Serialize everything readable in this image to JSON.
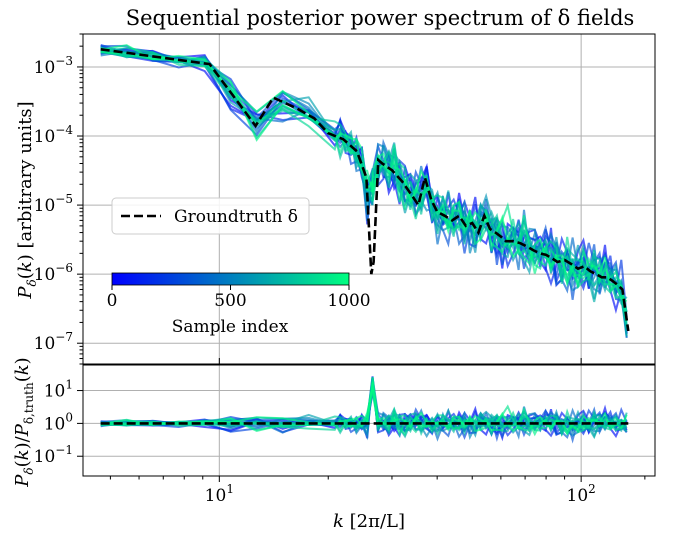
{
  "chart_data": [
    {
      "type": "line",
      "panel": "top",
      "title": "Sequential posterior power spectrum of δ fields",
      "xlabel": "",
      "ylabel": "P_δ(k) [arbitrary units]",
      "xscale": "log",
      "yscale": "log",
      "xlim": [
        4.2,
        160
      ],
      "ylim": [
        5e-08,
        0.003
      ],
      "grid": true,
      "yticks": [
        {
          "value": 0.001,
          "base": "10",
          "exp": "−3"
        },
        {
          "value": 0.0001,
          "base": "10",
          "exp": "−4"
        },
        {
          "value": 1e-05,
          "base": "10",
          "exp": "−5"
        },
        {
          "value": 1e-06,
          "base": "10",
          "exp": "−6"
        },
        {
          "value": 1e-07,
          "base": "10",
          "exp": "−7"
        }
      ],
      "legend": {
        "position": "middle-left",
        "label": "Groundtruth δ"
      },
      "colorbar": {
        "label": "Sample index",
        "min": 0,
        "max": 1000,
        "ticks": [
          "0",
          "500",
          "1000"
        ],
        "colors": [
          "#0000ff",
          "#00ff80"
        ],
        "colormap": "winter"
      },
      "groundtruth": {
        "name": "Groundtruth δ",
        "color": "#000000",
        "style": "dashed",
        "x": [
          4.7,
          9.4,
          12.6,
          14.1,
          16.4,
          18.3,
          20.0,
          22.0,
          24.0,
          25.5,
          26.3,
          26.7,
          27.5,
          28.2,
          30.0,
          32.0,
          34.0,
          35.5,
          37.0,
          38.5,
          40.0,
          42.0,
          44.0,
          46.0,
          48.0,
          50.0,
          52.0,
          54.0,
          56.0,
          58.0,
          60.0,
          62.0,
          65.0,
          68.0,
          71.0,
          74.0,
          77.0,
          80.0,
          83.0,
          86.0,
          90.0,
          94.0,
          98.0,
          102.0,
          106.0,
          110.0,
          114.0,
          118.0,
          122.0,
          126.0,
          130.0,
          135.0
        ],
        "y": [
          0.0018,
          0.0011,
          0.00014,
          0.00036,
          0.00025,
          0.00018,
          0.00011,
          9e-05,
          6e-05,
          2.5e-05,
          1e-06,
          1.5e-06,
          4.5e-05,
          4e-05,
          3.2e-05,
          2.2e-05,
          1.4e-05,
          1e-05,
          2.5e-05,
          1.2e-05,
          8e-06,
          7e-06,
          6e-06,
          7e-06,
          5e-06,
          5.5e-06,
          4e-06,
          7e-06,
          4.5e-06,
          4e-06,
          3.5e-06,
          3e-06,
          3e-06,
          2.8e-06,
          2.5e-06,
          2.2e-06,
          2e-06,
          1.9e-06,
          1.7e-06,
          1.5e-06,
          1.6e-06,
          1.4e-06,
          1.2e-06,
          1.3e-06,
          1.1e-06,
          1e-06,
          9e-07,
          9e-07,
          8e-07,
          7e-07,
          6e-07,
          1.5e-07
        ]
      },
      "samples": "20 posterior samples colored by sample index (0–1000), each a noisy realization scattered around the groundtruth spectrum"
    },
    {
      "type": "line",
      "panel": "bottom",
      "xlabel": "k [2π/L]",
      "ylabel": "P_δ(k)/P_δ,truth(k)",
      "xscale": "log",
      "yscale": "log",
      "xlim": [
        4.2,
        160
      ],
      "ylim": [
        0.025,
        60
      ],
      "grid": true,
      "xticks": [
        {
          "value": 10,
          "base": "10",
          "exp": "1"
        },
        {
          "value": 100,
          "base": "10",
          "exp": "2"
        }
      ],
      "yticks": [
        {
          "value": 10,
          "base": "10",
          "exp": "1"
        },
        {
          "value": 1,
          "base": "10",
          "exp": "0"
        },
        {
          "value": 0.1,
          "base": "10",
          "exp": "−1"
        }
      ],
      "reference": {
        "name": "Groundtruth ratio",
        "value": 1,
        "color": "#000000",
        "style": "dashed"
      },
      "samples": "ratio of each posterior sample to groundtruth; scatter grows with k, spike near k≈26"
    }
  ]
}
